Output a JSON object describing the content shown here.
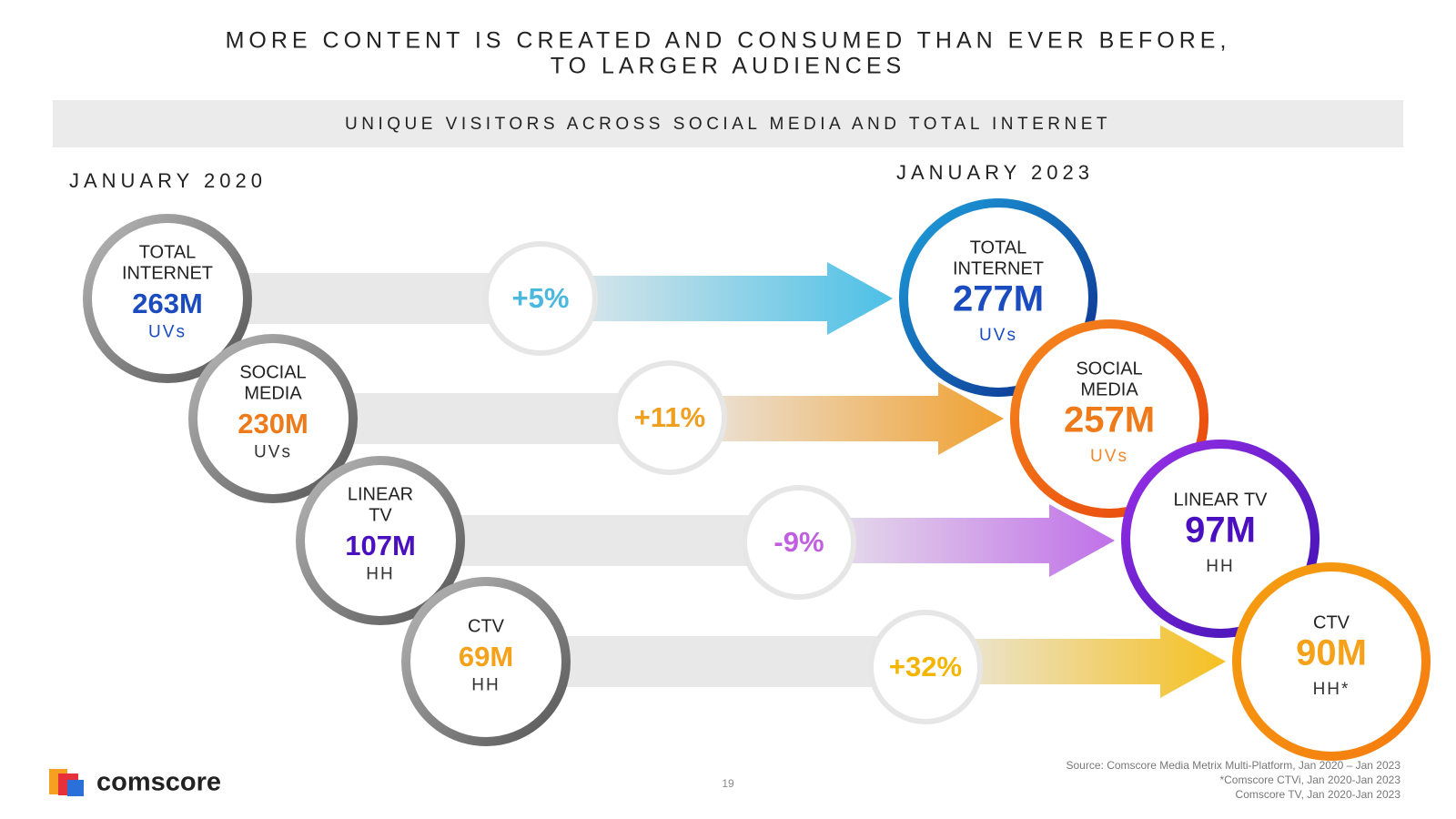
{
  "header": {
    "title_lines": [
      "MORE CONTENT IS CREATED AND CONSUMED THAN EVER BEFORE,",
      "TO LARGER AUDIENCES"
    ],
    "banner": "UNIQUE VISITORS ACROSS SOCIAL MEDIA AND TOTAL INTERNET"
  },
  "left_heading": "JANUARY 2020",
  "right_heading": "JANUARY 2023",
  "rows": [
    {
      "before": {
        "label": [
          "TOTAL",
          "INTERNET"
        ],
        "value": "263M",
        "unit": "UVs"
      },
      "change": "+5%",
      "after": {
        "label": [
          "TOTAL",
          "INTERNET"
        ],
        "value": "277M",
        "unit": "UVs"
      }
    },
    {
      "before": {
        "label": [
          "SOCIAL",
          "MEDIA"
        ],
        "value": "230M",
        "unit": "UVs"
      },
      "change": "+11%",
      "after": {
        "label": [
          "SOCIAL",
          "MEDIA"
        ],
        "value": "257M",
        "unit": "UVs"
      }
    },
    {
      "before": {
        "label": [
          "LINEAR",
          "TV"
        ],
        "value": "107M",
        "unit": "HH"
      },
      "change": "-9%",
      "after": {
        "label": [
          "LINEAR TV"
        ],
        "value": "97M",
        "unit": "HH"
      }
    },
    {
      "before": {
        "label": [
          "CTV"
        ],
        "value": "69M",
        "unit": "HH"
      },
      "change": "+32%",
      "after": {
        "label": [
          "CTV"
        ],
        "value": "90M",
        "unit": "HH*"
      }
    }
  ],
  "footer": {
    "logo": "comscore",
    "page": "19",
    "sources": [
      "Source: Comscore Media Metrix Multi-Platform, Jan 2020 – Jan 2023",
      "*Comscore CTVi, Jan 2020-Jan 2023",
      "Comscore TV, Jan 2020-Jan 2023"
    ]
  }
}
